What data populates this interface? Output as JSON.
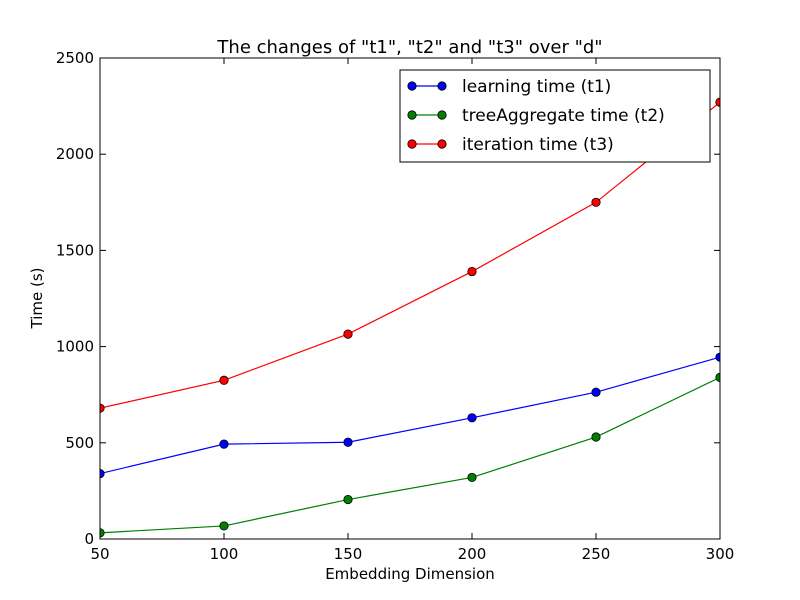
{
  "chart_data": {
    "type": "line",
    "title": "The changes of \"t1\", \"t2\" and \"t3\" over \"d\"",
    "xlabel": "Embedding Dimension",
    "ylabel": "Time (s)",
    "x": [
      50,
      100,
      150,
      200,
      250,
      300
    ],
    "xlim": [
      50,
      300
    ],
    "ylim": [
      0,
      2500
    ],
    "xticks": [
      50,
      100,
      150,
      200,
      250,
      300
    ],
    "yticks": [
      0,
      500,
      1000,
      1500,
      2000,
      2500
    ],
    "grid": false,
    "legend_position": "top-right",
    "series": [
      {
        "name": "learning time (t1)",
        "color": "#0000ff",
        "marker": "circle",
        "values": [
          340,
          493,
          503,
          630,
          763,
          945
        ]
      },
      {
        "name": "treeAggregate time (t2)",
        "color": "#007f00",
        "marker": "circle",
        "values": [
          32,
          68,
          205,
          320,
          530,
          840
        ]
      },
      {
        "name": "iteration time (t3)",
        "color": "#ff0000",
        "marker": "circle",
        "values": [
          680,
          825,
          1065,
          1390,
          1750,
          2270
        ]
      }
    ]
  }
}
